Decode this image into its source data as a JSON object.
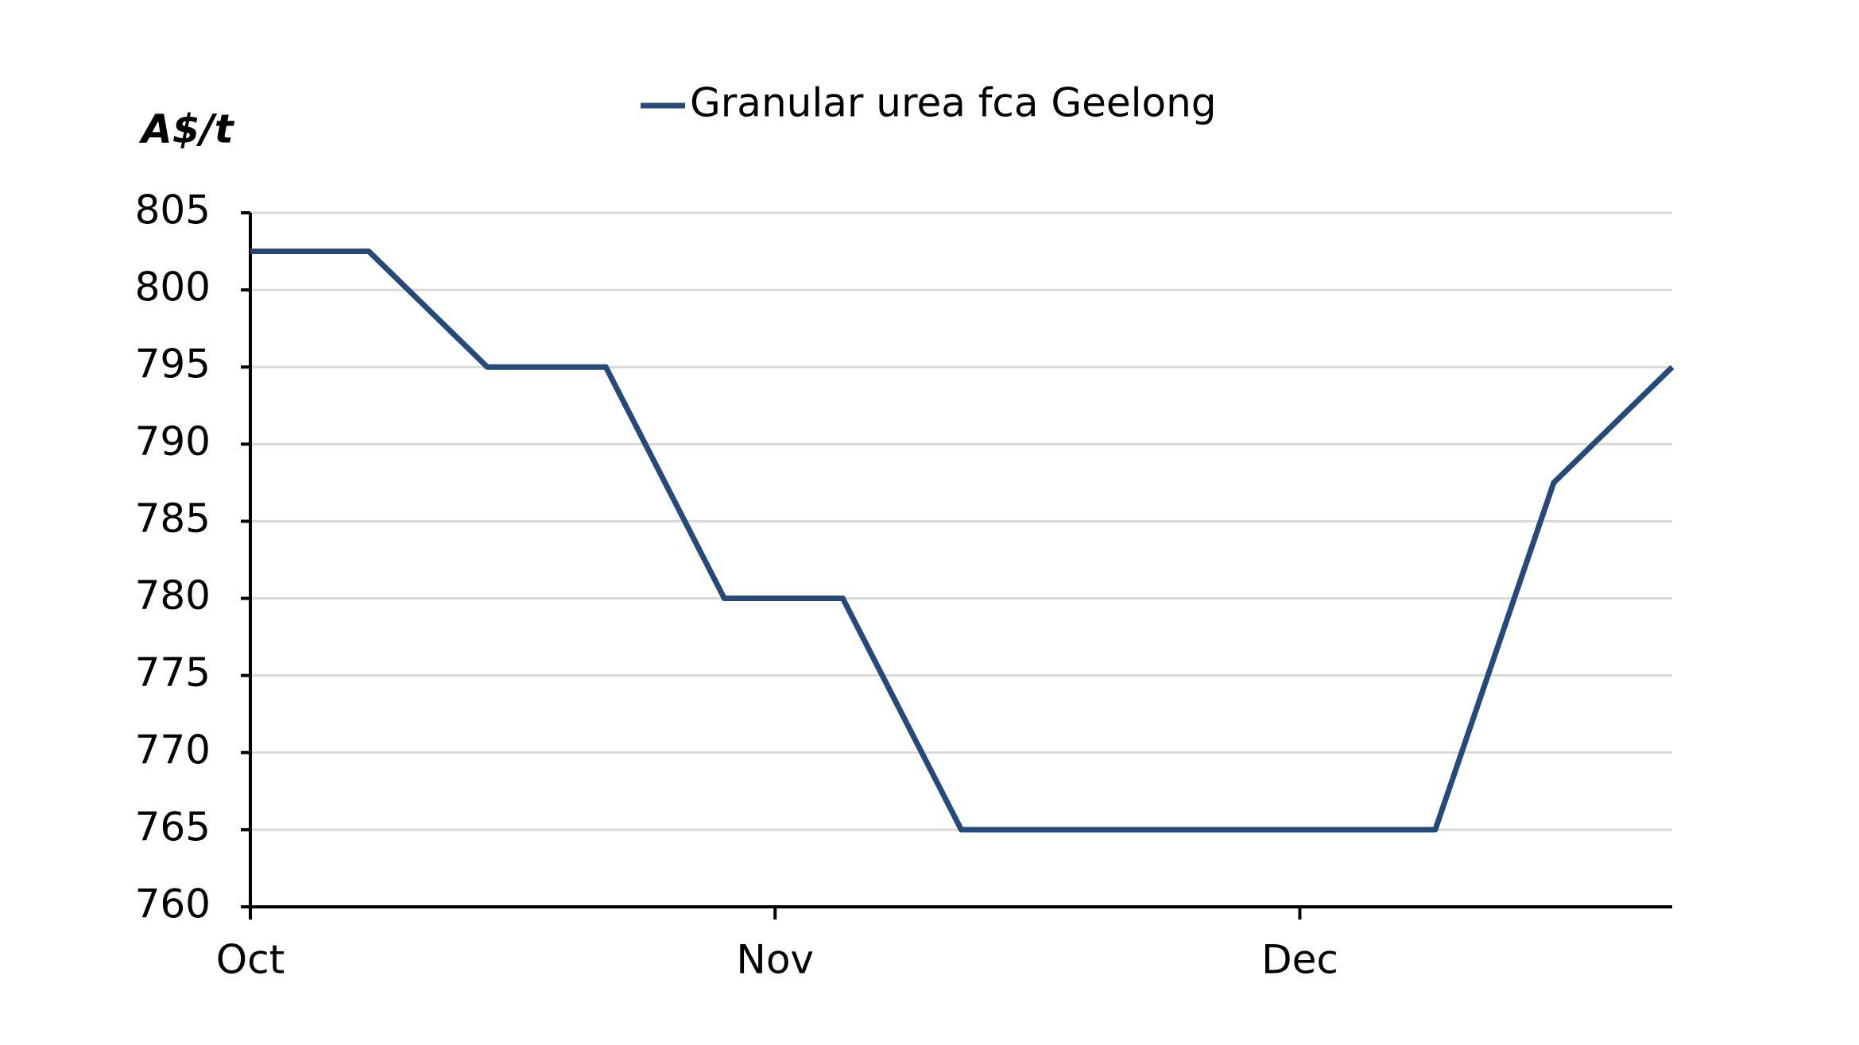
{
  "chart_data": {
    "type": "line",
    "y_label": "A$/t",
    "x": [
      0,
      7,
      14,
      21,
      28,
      35,
      42,
      49,
      56,
      63,
      70,
      77,
      84
    ],
    "xlim": [
      0,
      84
    ],
    "xticks": [
      {
        "value": 0,
        "label": "Oct"
      },
      {
        "value": 31,
        "label": "Nov"
      },
      {
        "value": 62,
        "label": "Dec"
      }
    ],
    "ylim": [
      760,
      805
    ],
    "yticks": [
      760,
      765,
      770,
      775,
      780,
      785,
      790,
      795,
      800,
      805
    ],
    "grid": true,
    "legend": "top",
    "series": [
      {
        "name": "Granular urea fca Geelong",
        "color": "#244a7c",
        "values": [
          802.5,
          802.5,
          795,
          795,
          780,
          780,
          765,
          765,
          765,
          765,
          765,
          787.5,
          795
        ]
      }
    ]
  }
}
